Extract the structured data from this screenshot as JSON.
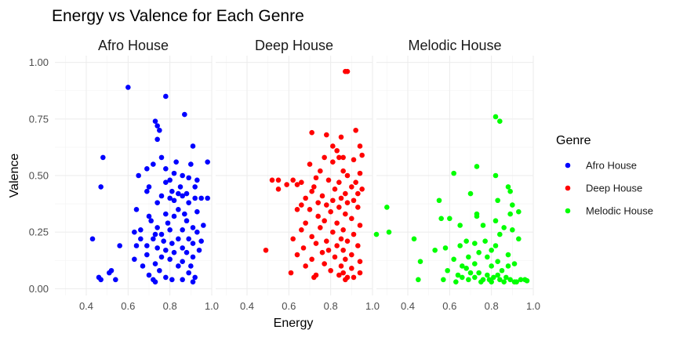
{
  "chart_data": {
    "type": "scatter",
    "title": "Energy vs Valence for Each Genre",
    "xlabel": "Energy",
    "ylabel": "Valence",
    "xlim": [
      0.25,
      1.0
    ],
    "ylim": [
      -0.03,
      1.03
    ],
    "x_ticks": [
      "0.4",
      "0.6",
      "0.8",
      "1.0"
    ],
    "y_ticks": [
      "0.00",
      "0.25",
      "0.50",
      "0.75",
      "1.00"
    ],
    "grid": true,
    "legend_position": "right",
    "legend_title": "Genre",
    "facets": [
      "Afro House",
      "Deep House",
      "Melodic House"
    ],
    "series": [
      {
        "name": "Afro House",
        "color": "#0000ff",
        "points": [
          [
            0.6,
            0.89
          ],
          [
            0.78,
            0.85
          ],
          [
            0.87,
            0.77
          ],
          [
            0.73,
            0.74
          ],
          [
            0.74,
            0.72
          ],
          [
            0.75,
            0.7
          ],
          [
            0.74,
            0.66
          ],
          [
            0.91,
            0.63
          ],
          [
            0.48,
            0.58
          ],
          [
            0.76,
            0.58
          ],
          [
            0.83,
            0.56
          ],
          [
            0.98,
            0.56
          ],
          [
            0.72,
            0.55
          ],
          [
            0.9,
            0.55
          ],
          [
            0.69,
            0.53
          ],
          [
            0.78,
            0.53
          ],
          [
            0.82,
            0.51
          ],
          [
            0.65,
            0.5
          ],
          [
            0.86,
            0.5
          ],
          [
            0.89,
            0.49
          ],
          [
            0.8,
            0.48
          ],
          [
            0.93,
            0.48
          ],
          [
            0.78,
            0.47
          ],
          [
            0.47,
            0.45
          ],
          [
            0.7,
            0.45
          ],
          [
            0.85,
            0.45
          ],
          [
            0.92,
            0.45
          ],
          [
            0.69,
            0.43
          ],
          [
            0.81,
            0.43
          ],
          [
            0.84,
            0.42
          ],
          [
            0.88,
            0.42
          ],
          [
            0.76,
            0.41
          ],
          [
            0.86,
            0.41
          ],
          [
            0.8,
            0.4
          ],
          [
            0.95,
            0.4
          ],
          [
            0.92,
            0.4
          ],
          [
            0.98,
            0.4
          ],
          [
            0.82,
            0.39
          ],
          [
            0.74,
            0.38
          ],
          [
            0.89,
            0.38
          ],
          [
            0.64,
            0.35
          ],
          [
            0.84,
            0.35
          ],
          [
            0.93,
            0.34
          ],
          [
            0.78,
            0.33
          ],
          [
            0.87,
            0.33
          ],
          [
            0.7,
            0.32
          ],
          [
            0.82,
            0.32
          ],
          [
            0.71,
            0.3
          ],
          [
            0.88,
            0.3
          ],
          [
            0.79,
            0.29
          ],
          [
            0.96,
            0.28
          ],
          [
            0.74,
            0.27
          ],
          [
            0.91,
            0.27
          ],
          [
            0.66,
            0.26
          ],
          [
            0.8,
            0.26
          ],
          [
            0.86,
            0.26
          ],
          [
            0.63,
            0.25
          ],
          [
            0.93,
            0.25
          ],
          [
            0.73,
            0.24
          ],
          [
            0.76,
            0.24
          ],
          [
            0.43,
            0.22
          ],
          [
            0.72,
            0.22
          ],
          [
            0.66,
            0.22
          ],
          [
            0.84,
            0.22
          ],
          [
            0.89,
            0.22
          ],
          [
            0.77,
            0.21
          ],
          [
            0.95,
            0.21
          ],
          [
            0.81,
            0.2
          ],
          [
            0.91,
            0.2
          ],
          [
            0.64,
            0.19
          ],
          [
            0.69,
            0.19
          ],
          [
            0.56,
            0.19
          ],
          [
            0.74,
            0.18
          ],
          [
            0.86,
            0.18
          ],
          [
            0.78,
            0.17
          ],
          [
            0.94,
            0.17
          ],
          [
            0.82,
            0.16
          ],
          [
            0.88,
            0.16
          ],
          [
            0.69,
            0.15
          ],
          [
            0.76,
            0.14
          ],
          [
            0.91,
            0.14
          ],
          [
            0.63,
            0.13
          ],
          [
            0.8,
            0.13
          ],
          [
            0.86,
            0.12
          ],
          [
            0.73,
            0.11
          ],
          [
            0.67,
            0.1
          ],
          [
            0.9,
            0.1
          ],
          [
            0.84,
            0.1
          ],
          [
            0.52,
            0.08
          ],
          [
            0.75,
            0.08
          ],
          [
            0.51,
            0.07
          ],
          [
            0.89,
            0.07
          ],
          [
            0.7,
            0.06
          ],
          [
            0.46,
            0.05
          ],
          [
            0.78,
            0.05
          ],
          [
            0.92,
            0.05
          ],
          [
            0.54,
            0.04
          ],
          [
            0.81,
            0.04
          ],
          [
            0.47,
            0.04
          ],
          [
            0.86,
            0.04
          ],
          [
            0.73,
            0.03
          ],
          [
            0.91,
            0.03
          ],
          [
            0.72,
            0.04
          ]
        ]
      },
      {
        "name": "Deep House",
        "color": "#ff0000",
        "points": [
          [
            0.87,
            0.96
          ],
          [
            0.88,
            0.96
          ],
          [
            0.92,
            0.7
          ],
          [
            0.71,
            0.69
          ],
          [
            0.78,
            0.68
          ],
          [
            0.85,
            0.67
          ],
          [
            0.94,
            0.63
          ],
          [
            0.81,
            0.63
          ],
          [
            0.83,
            0.61
          ],
          [
            0.84,
            0.58
          ],
          [
            0.95,
            0.59
          ],
          [
            0.77,
            0.58
          ],
          [
            0.86,
            0.58
          ],
          [
            0.91,
            0.57
          ],
          [
            0.7,
            0.55
          ],
          [
            0.81,
            0.56
          ],
          [
            0.75,
            0.52
          ],
          [
            0.86,
            0.52
          ],
          [
            0.94,
            0.51
          ],
          [
            0.88,
            0.5
          ],
          [
            0.73,
            0.49
          ],
          [
            0.52,
            0.48
          ],
          [
            0.55,
            0.48
          ],
          [
            0.62,
            0.48
          ],
          [
            0.79,
            0.48
          ],
          [
            0.66,
            0.47
          ],
          [
            0.84,
            0.47
          ],
          [
            0.92,
            0.47
          ],
          [
            0.59,
            0.46
          ],
          [
            0.64,
            0.46
          ],
          [
            0.72,
            0.45
          ],
          [
            0.9,
            0.45
          ],
          [
            0.55,
            0.44
          ],
          [
            0.82,
            0.44
          ],
          [
            0.95,
            0.44
          ],
          [
            0.71,
            0.43
          ],
          [
            0.87,
            0.42
          ],
          [
            0.93,
            0.42
          ],
          [
            0.76,
            0.41
          ],
          [
            0.85,
            0.4
          ],
          [
            0.68,
            0.4
          ],
          [
            0.91,
            0.39
          ],
          [
            0.81,
            0.39
          ],
          [
            0.74,
            0.38
          ],
          [
            0.88,
            0.38
          ],
          [
            0.66,
            0.37
          ],
          [
            0.78,
            0.37
          ],
          [
            0.84,
            0.36
          ],
          [
            0.7,
            0.35
          ],
          [
            0.93,
            0.36
          ],
          [
            0.64,
            0.35
          ],
          [
            0.8,
            0.34
          ],
          [
            0.87,
            0.33
          ],
          [
            0.74,
            0.32
          ],
          [
            0.9,
            0.31
          ],
          [
            0.77,
            0.3
          ],
          [
            0.83,
            0.29
          ],
          [
            0.68,
            0.29
          ],
          [
            0.94,
            0.28
          ],
          [
            0.75,
            0.27
          ],
          [
            0.86,
            0.26
          ],
          [
            0.66,
            0.26
          ],
          [
            0.81,
            0.25
          ],
          [
            0.91,
            0.24
          ],
          [
            0.71,
            0.23
          ],
          [
            0.85,
            0.22
          ],
          [
            0.62,
            0.22
          ],
          [
            0.78,
            0.21
          ],
          [
            0.88,
            0.21
          ],
          [
            0.73,
            0.2
          ],
          [
            0.83,
            0.19
          ],
          [
            0.93,
            0.19
          ],
          [
            0.67,
            0.18
          ],
          [
            0.79,
            0.17
          ],
          [
            0.86,
            0.17
          ],
          [
            0.49,
            0.17
          ],
          [
            0.76,
            0.16
          ],
          [
            0.9,
            0.15
          ],
          [
            0.64,
            0.15
          ],
          [
            0.82,
            0.14
          ],
          [
            0.71,
            0.13
          ],
          [
            0.87,
            0.13
          ],
          [
            0.94,
            0.12
          ],
          [
            0.77,
            0.11
          ],
          [
            0.85,
            0.1
          ],
          [
            0.68,
            0.1
          ],
          [
            0.9,
            0.09
          ],
          [
            0.8,
            0.08
          ],
          [
            0.61,
            0.07
          ],
          [
            0.86,
            0.07
          ],
          [
            0.73,
            0.06
          ],
          [
            0.84,
            0.06
          ],
          [
            0.94,
            0.07
          ],
          [
            0.72,
            0.05
          ],
          [
            0.88,
            0.05
          ],
          [
            0.91,
            0.05
          ],
          [
            0.87,
            0.04
          ]
        ]
      },
      {
        "name": "Melodic House",
        "color": "#00ff00",
        "points": [
          [
            0.82,
            0.76
          ],
          [
            0.84,
            0.74
          ],
          [
            0.73,
            0.54
          ],
          [
            0.62,
            0.51
          ],
          [
            0.82,
            0.5
          ],
          [
            0.88,
            0.45
          ],
          [
            0.89,
            0.43
          ],
          [
            0.7,
            0.42
          ],
          [
            0.55,
            0.39
          ],
          [
            0.83,
            0.39
          ],
          [
            0.3,
            0.36
          ],
          [
            0.9,
            0.37
          ],
          [
            0.73,
            0.33
          ],
          [
            0.93,
            0.34
          ],
          [
            0.89,
            0.33
          ],
          [
            0.73,
            0.32
          ],
          [
            0.56,
            0.31
          ],
          [
            0.6,
            0.31
          ],
          [
            0.82,
            0.3
          ],
          [
            0.65,
            0.28
          ],
          [
            0.76,
            0.28
          ],
          [
            0.86,
            0.27
          ],
          [
            0.9,
            0.26
          ],
          [
            0.31,
            0.25
          ],
          [
            0.25,
            0.24
          ],
          [
            0.84,
            0.24
          ],
          [
            0.43,
            0.22
          ],
          [
            0.93,
            0.22
          ],
          [
            0.68,
            0.21
          ],
          [
            0.77,
            0.21
          ],
          [
            0.72,
            0.2
          ],
          [
            0.82,
            0.19
          ],
          [
            0.65,
            0.19
          ],
          [
            0.58,
            0.18
          ],
          [
            0.8,
            0.17
          ],
          [
            0.53,
            0.17
          ],
          [
            0.74,
            0.16
          ],
          [
            0.88,
            0.15
          ],
          [
            0.69,
            0.14
          ],
          [
            0.78,
            0.14
          ],
          [
            0.62,
            0.13
          ],
          [
            0.46,
            0.12
          ],
          [
            0.83,
            0.12
          ],
          [
            0.72,
            0.11
          ],
          [
            0.91,
            0.11
          ],
          [
            0.66,
            0.1
          ],
          [
            0.8,
            0.1
          ],
          [
            0.88,
            0.1
          ],
          [
            0.68,
            0.09
          ],
          [
            0.85,
            0.08
          ],
          [
            0.59,
            0.08
          ],
          [
            0.74,
            0.07
          ],
          [
            0.7,
            0.07
          ],
          [
            0.64,
            0.06
          ],
          [
            0.78,
            0.06
          ],
          [
            0.83,
            0.06
          ],
          [
            0.66,
            0.05
          ],
          [
            0.72,
            0.05
          ],
          [
            0.81,
            0.05
          ],
          [
            0.87,
            0.05
          ],
          [
            0.57,
            0.04
          ],
          [
            0.45,
            0.04
          ],
          [
            0.69,
            0.04
          ],
          [
            0.76,
            0.04
          ],
          [
            0.79,
            0.04
          ],
          [
            0.84,
            0.04
          ],
          [
            0.89,
            0.04
          ],
          [
            0.94,
            0.04
          ],
          [
            0.96,
            0.04
          ],
          [
            0.63,
            0.03
          ],
          [
            0.75,
            0.03
          ],
          [
            0.86,
            0.03
          ],
          [
            0.92,
            0.03
          ],
          [
            0.8,
            0.03
          ],
          [
            0.91,
            0.03
          ],
          [
            0.97,
            0.035
          ]
        ]
      }
    ]
  }
}
